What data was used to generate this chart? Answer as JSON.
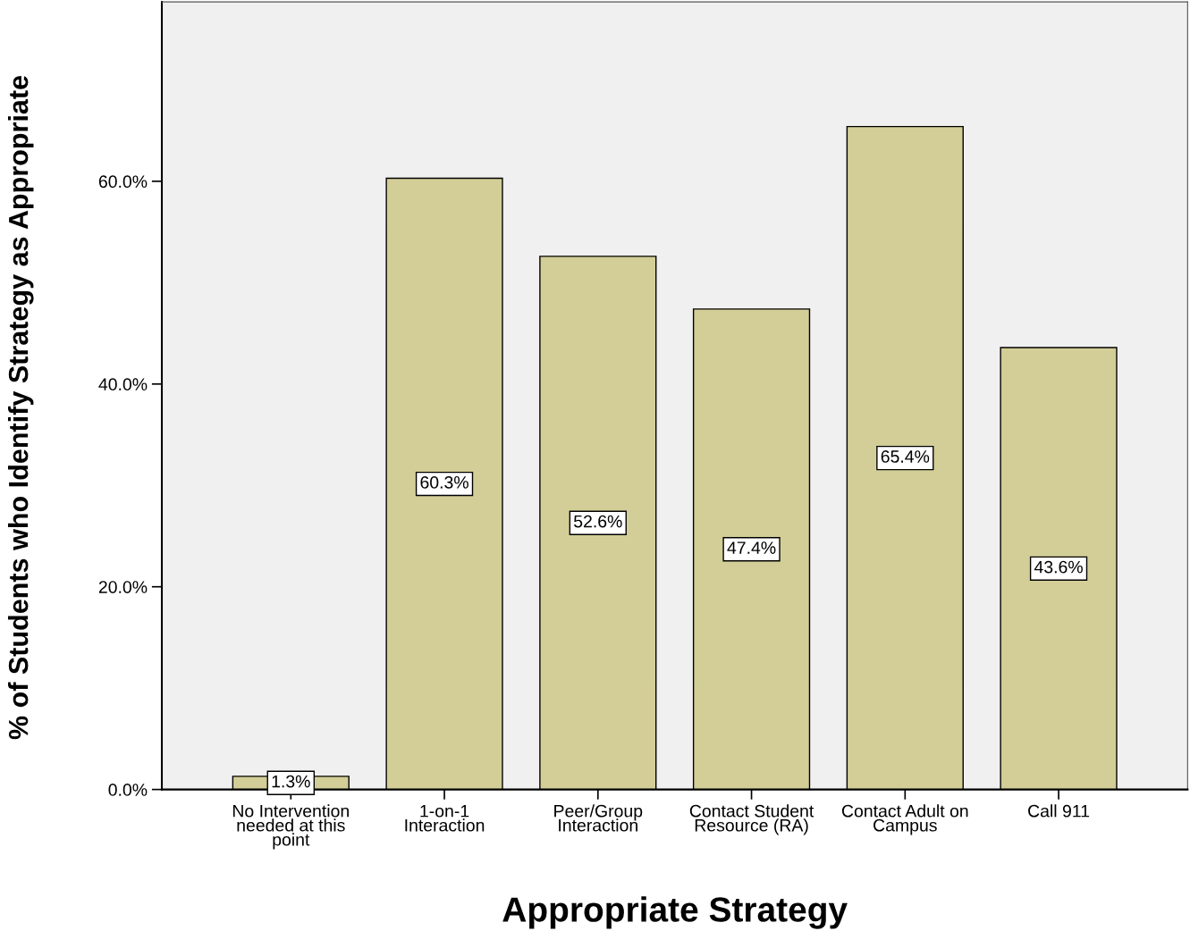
{
  "chart_data": {
    "type": "bar",
    "xlabel": "Appropriate Strategy",
    "ylabel": "% of Students who Identify Strategy as Appropriate",
    "categories": [
      "No Intervention\nneeded at this\npoint",
      "1-on-1\nInteraction",
      "Peer/Group\nInteraction",
      "Contact Student\nResource (RA)",
      "Contact Adult on\nCampus",
      "Call 911"
    ],
    "values": [
      1.3,
      60.3,
      52.6,
      47.4,
      65.4,
      43.6
    ],
    "value_labels": [
      "1.3%",
      "60.3%",
      "52.6%",
      "47.4%",
      "65.4%",
      "43.6%"
    ],
    "color": "#d3ce97",
    "ylim": [
      0,
      77.7
    ],
    "yticks": [
      {
        "value": 0,
        "label": "0.0%"
      },
      {
        "value": 20,
        "label": "20.0%"
      },
      {
        "value": 40,
        "label": "40.0%"
      },
      {
        "value": 60,
        "label": "60.0%"
      }
    ],
    "grid": false,
    "legend": false
  }
}
